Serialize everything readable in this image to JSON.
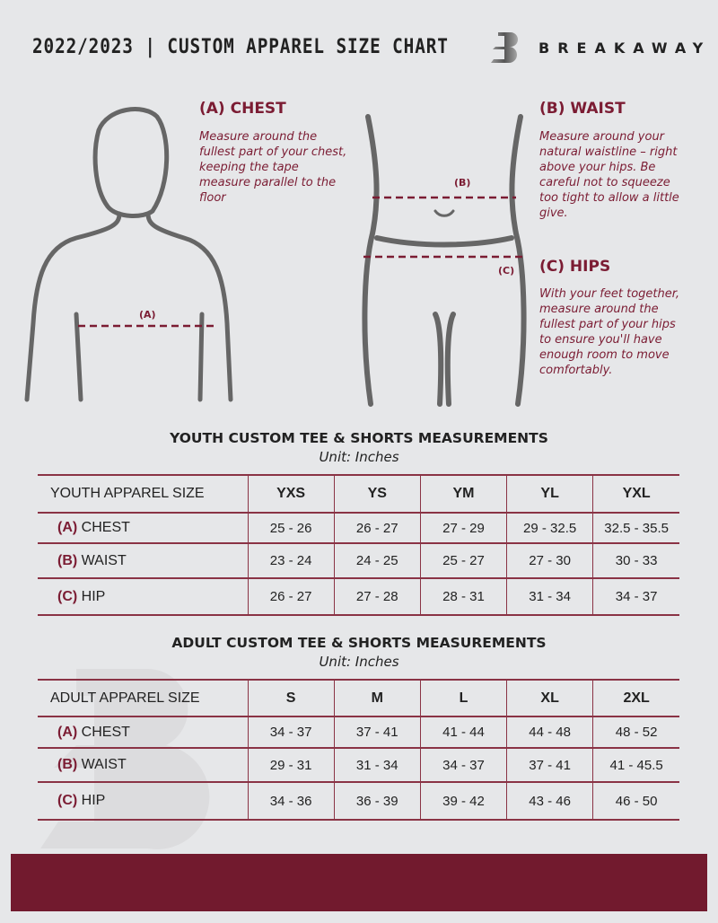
{
  "header": {
    "title": "2022/2023  |  CUSTOM APPAREL SIZE CHART",
    "brand": "BREAKAWAY"
  },
  "colors": {
    "accent": "#7b1c33",
    "background": "#e6e7e9",
    "footer": "#721a2e"
  },
  "chest": {
    "heading": "(A) CHEST",
    "description": "Measure around the fullest part of your chest, keeping the tape measure parallel to the floor",
    "marker": "(A)"
  },
  "waist": {
    "heading": "(B) WAIST",
    "description": "Measure around your natural waistline – right above your hips. Be careful not to squeeze too tight to allow a little give.",
    "marker": "(B)"
  },
  "hips": {
    "heading": "(C) HIPS",
    "description": "With your feet together, measure around the fullest part of your hips to ensure you'll have enough room to move comfortably.",
    "marker": "(C)"
  },
  "youth": {
    "title": "YOUTH CUSTOM TEE & SHORTS MEASUREMENTS",
    "unit": "Unit: Inches",
    "header": [
      "YOUTH APPAREL SIZE",
      "YXS",
      "YS",
      "YM",
      "YL",
      "YXL"
    ],
    "rows": [
      {
        "code": "(A)",
        "name": "CHEST",
        "values": [
          "25 - 26",
          "26 - 27",
          "27 - 29",
          "29 - 32.5",
          "32.5 - 35.5"
        ]
      },
      {
        "code": "(B)",
        "name": "WAIST",
        "values": [
          "23 - 24",
          "24 - 25",
          "25 - 27",
          "27 - 30",
          "30 - 33"
        ]
      },
      {
        "code": "(C)",
        "name": "HIP",
        "values": [
          "26 - 27",
          "27 - 28",
          "28 - 31",
          "31 - 34",
          "34 - 37"
        ]
      }
    ]
  },
  "adult": {
    "title": "ADULT CUSTOM TEE & SHORTS MEASUREMENTS",
    "unit": "Unit: Inches",
    "header": [
      "ADULT APPAREL SIZE",
      "S",
      "M",
      "L",
      "XL",
      "2XL"
    ],
    "rows": [
      {
        "code": "(A)",
        "name": "CHEST",
        "values": [
          "34 - 37",
          "37 - 41",
          "41 - 44",
          "44 - 48",
          "48 - 52"
        ]
      },
      {
        "code": "(B)",
        "name": "WAIST",
        "values": [
          "29 - 31",
          "31 - 34",
          "34 - 37",
          "37 - 41",
          "41 - 45.5"
        ]
      },
      {
        "code": "(C)",
        "name": "HIP",
        "values": [
          "34 - 36",
          "36 - 39",
          "39 - 42",
          "43 - 46",
          "46 - 50"
        ]
      }
    ]
  }
}
